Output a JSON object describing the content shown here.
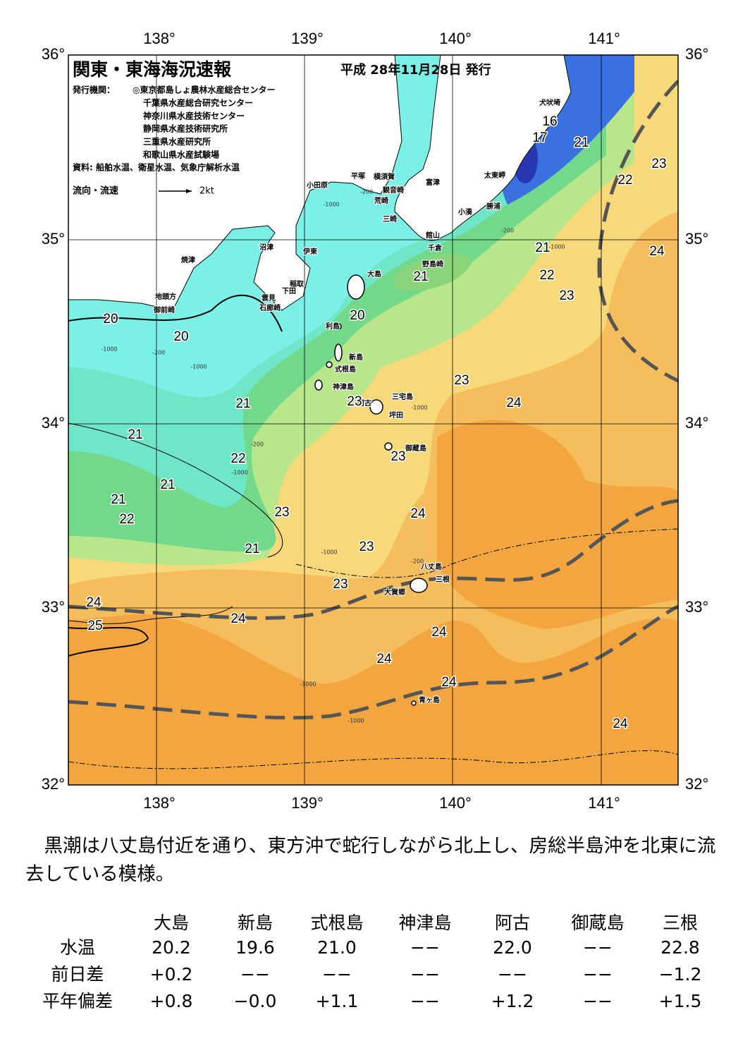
{
  "map": {
    "title": "関東・東海海況速報",
    "issued": "平成 28年11月28日 発行",
    "issuers_label": "発行機関：",
    "issuers": [
      "◎東京都島しょ農林水産総合センター",
      "千葉県水産総合研究センター",
      "神奈川県水産技術センター",
      "静岡県水産技術研究所",
      "三重県水産研究所",
      "和歌山県水産試験場"
    ],
    "sources": "資料: 船舶水温、衛星水温、気象庁解析水温",
    "legend": {
      "label": "流向・流速",
      "scale": "2kt"
    },
    "lon_ticks": [
      "138°",
      "139°",
      "140°",
      "141°"
    ],
    "lat_ticks": [
      "36°",
      "35°",
      "34°",
      "33°",
      "32°"
    ],
    "place_names": [
      "犬吠埼",
      "太東岬",
      "勝浦",
      "小湊",
      "富津",
      "館山",
      "千倉",
      "野島崎",
      "横須賀",
      "観音崎",
      "荒崎",
      "三崎",
      "平塚",
      "小田原",
      "沼津",
      "伊東",
      "稲取",
      "下田",
      "雲見",
      "石廊崎",
      "焼津",
      "地頭方",
      "御前崎",
      "大島",
      "利島",
      "新島",
      "式根島",
      "神津島",
      "三宅島",
      "阿古",
      "坪田",
      "御蔵島",
      "八丈島",
      "三根",
      "大賀郷",
      "青ヶ島"
    ],
    "temperature_labels": [
      16,
      17,
      21,
      22,
      23,
      21,
      24,
      22,
      23,
      21,
      20,
      20,
      20,
      23,
      24,
      23,
      21,
      21,
      22,
      23,
      21,
      21,
      22,
      23,
      24,
      23,
      21,
      23,
      24,
      25,
      24,
      24,
      24,
      24,
      24
    ],
    "depth_labels": [
      "-1000",
      "-200",
      "-200",
      "-1000",
      "-1000",
      "-200",
      "-1000",
      "-200",
      "-1000",
      "-1000",
      "-200",
      "-1000",
      "-1000",
      "-1000"
    ]
  },
  "summary": "黒潮は八丈島付近を通り、東方沖で蛇行しながら北上し、房総半島沖を北東に流去している模様。",
  "table": {
    "header": [
      "大島",
      "新島",
      "式根島",
      "神津島",
      "阿古",
      "御蔵島",
      "三根"
    ],
    "rows": [
      [
        "水温",
        "20.2",
        "19.6",
        "21.0",
        "−−",
        "22.0",
        "−−",
        "22.8"
      ],
      [
        "前日差",
        "+0.2",
        "−−",
        "−−",
        "−−",
        "−−",
        "−−",
        "−1.2"
      ],
      [
        "平年偏差",
        "+0.8",
        "−0.0",
        "+1.1",
        "−−",
        "+1.2",
        "−−",
        "+1.5"
      ]
    ]
  }
}
